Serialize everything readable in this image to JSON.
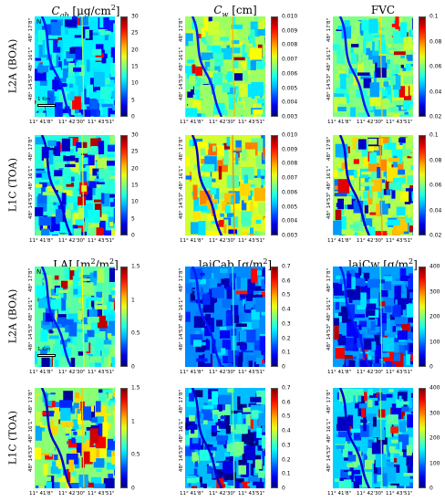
{
  "section1": {
    "columns": [
      {
        "html": "<i>C</i><sub><i>ab</i></sub> [μg/cm<sup>2</sup>]"
      },
      {
        "html": "<i>C</i><sub><i>w</i></sub> [cm]"
      },
      {
        "html": "FVC"
      }
    ],
    "rows": [
      "L2A (BOA)",
      "L1C (TOA)"
    ],
    "ticks": [
      [
        "0",
        "5",
        "10",
        "15",
        "20",
        "25",
        "30"
      ],
      [
        "0.003",
        "0.004",
        "0.005",
        "0.006",
        "0.007",
        "0.008",
        "0.009",
        "0.010"
      ],
      [
        "0.02",
        "0.04",
        "0.06",
        "0.08",
        "0.1"
      ]
    ]
  },
  "section2": {
    "columns": [
      {
        "html": "LAI [m<sup>2</sup>/m<sup>2</sup>]"
      },
      {
        "html": "laiCab [g/m<sup>2</sup>]"
      },
      {
        "html": "laiCw [g/m<sup>2</sup>]"
      }
    ],
    "rows": [
      "L2A (BOA)",
      "L1C (TOA)"
    ],
    "ticks": [
      [
        "0",
        "0.5",
        "1",
        "1.5"
      ],
      [
        "0",
        "0.1",
        "0.2",
        "0.3",
        "0.4",
        "0.5",
        "0.6",
        "0.7"
      ],
      [
        "0",
        "100",
        "200",
        "300",
        "400"
      ]
    ]
  },
  "lat_labels": [
    "48° 17'8\"",
    "48° 16'1\"",
    "48° 14'53\""
  ],
  "lon_labels": [
    "11° 41'8\"",
    "11° 42'30\"",
    "11° 43'51\""
  ],
  "north_label": "N",
  "scale_label": "1 Km",
  "colormap": "jet",
  "colors": {
    "low": "#00008f",
    "mid": "#00ffff",
    "high": "#800000"
  }
}
